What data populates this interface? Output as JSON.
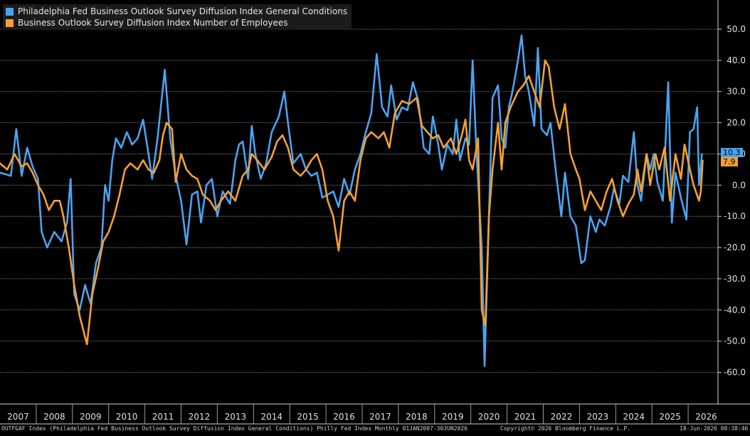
{
  "legend": {
    "items": [
      {
        "label": "Philadelphia Fed Business Outlook Survey Diffusion Index General Conditions",
        "color": "#4aa3f0"
      },
      {
        "label": "Business Outlook Survey Diffusion Index Number of Employees",
        "color": "#f5a030"
      }
    ]
  },
  "last_values": {
    "general": "10.3",
    "employees": "7.9"
  },
  "footer": {
    "left": "OUTFGAF Index (Philadelphia Fed Business Outlook Survey Diffusion Index General Conditions) Philly Fed Index Monthly 01JAN2007-30JUN2026",
    "center": "Copyright© 2026 Bloomberg Finance L.P.",
    "right": "18-Jun-2026 08:38:46"
  },
  "chart_data": {
    "type": "line",
    "x_tick_labels": [
      "2007",
      "2008",
      "2009",
      "2010",
      "2011",
      "2012",
      "2013",
      "2014",
      "2015",
      "2016",
      "2017",
      "2018",
      "2019",
      "2020",
      "2021",
      "2022",
      "2023",
      "2024",
      "2025",
      "2026"
    ],
    "y_tick_labels": [
      "50.0",
      "40.0",
      "30.0",
      "20.0",
      "10.0",
      "0.0",
      "-10.0",
      "-20.0",
      "-30.0",
      "-40.0",
      "-50.0",
      "-60.0"
    ],
    "ylim": [
      -65,
      55
    ],
    "y_ticks": [
      50,
      40,
      30,
      20,
      10,
      0,
      -10,
      -20,
      -30,
      -40,
      -50,
      -60
    ],
    "grid": true,
    "series": [
      {
        "name": "Philadelphia Fed Business Outlook Survey Diffusion Index General Conditions",
        "color": "#4aa3f0",
        "anchors": [
          [
            2007.0,
            4
          ],
          [
            2007.3,
            3
          ],
          [
            2007.45,
            18
          ],
          [
            2007.6,
            3
          ],
          [
            2007.75,
            12
          ],
          [
            2007.9,
            6
          ],
          [
            2008.05,
            2
          ],
          [
            2008.15,
            -15
          ],
          [
            2008.3,
            -20
          ],
          [
            2008.5,
            -15
          ],
          [
            2008.7,
            -18
          ],
          [
            2008.85,
            -12
          ],
          [
            2008.95,
            2
          ],
          [
            2009.05,
            -35
          ],
          [
            2009.2,
            -40
          ],
          [
            2009.35,
            -32
          ],
          [
            2009.5,
            -38
          ],
          [
            2009.65,
            -25
          ],
          [
            2009.8,
            -20
          ],
          [
            2009.9,
            0
          ],
          [
            2010.0,
            -5
          ],
          [
            2010.1,
            8
          ],
          [
            2010.2,
            15
          ],
          [
            2010.35,
            12
          ],
          [
            2010.5,
            17
          ],
          [
            2010.65,
            13
          ],
          [
            2010.8,
            15
          ],
          [
            2010.95,
            21
          ],
          [
            2011.1,
            10
          ],
          [
            2011.2,
            2
          ],
          [
            2011.35,
            15
          ],
          [
            2011.55,
            37
          ],
          [
            2011.7,
            15
          ],
          [
            2011.85,
            3
          ],
          [
            2012.0,
            -5
          ],
          [
            2012.15,
            -19
          ],
          [
            2012.3,
            -3
          ],
          [
            2012.45,
            -2
          ],
          [
            2012.55,
            -12
          ],
          [
            2012.7,
            0
          ],
          [
            2012.85,
            2
          ],
          [
            2013.0,
            -10
          ],
          [
            2013.15,
            -2
          ],
          [
            2013.35,
            -6
          ],
          [
            2013.5,
            8
          ],
          [
            2013.6,
            13
          ],
          [
            2013.7,
            14
          ],
          [
            2013.85,
            2
          ],
          [
            2013.95,
            19
          ],
          [
            2014.05,
            10
          ],
          [
            2014.2,
            2
          ],
          [
            2014.35,
            7
          ],
          [
            2014.5,
            17
          ],
          [
            2014.7,
            22
          ],
          [
            2014.85,
            30
          ],
          [
            2014.95,
            20
          ],
          [
            2015.1,
            7
          ],
          [
            2015.3,
            10
          ],
          [
            2015.45,
            5
          ],
          [
            2015.6,
            3
          ],
          [
            2015.75,
            4
          ],
          [
            2015.9,
            -4
          ],
          [
            2016.05,
            -3
          ],
          [
            2016.2,
            -2
          ],
          [
            2016.35,
            -7
          ],
          [
            2016.5,
            2
          ],
          [
            2016.65,
            -3
          ],
          [
            2016.8,
            5
          ],
          [
            2016.95,
            10
          ],
          [
            2017.1,
            17
          ],
          [
            2017.25,
            23
          ],
          [
            2017.4,
            42
          ],
          [
            2017.55,
            25
          ],
          [
            2017.7,
            22
          ],
          [
            2017.8,
            32
          ],
          [
            2017.95,
            21
          ],
          [
            2018.1,
            25
          ],
          [
            2018.25,
            24
          ],
          [
            2018.4,
            33
          ],
          [
            2018.55,
            27
          ],
          [
            2018.7,
            12
          ],
          [
            2018.85,
            10
          ],
          [
            2018.95,
            22
          ],
          [
            2019.1,
            13
          ],
          [
            2019.2,
            5
          ],
          [
            2019.35,
            13
          ],
          [
            2019.5,
            10
          ],
          [
            2019.6,
            21
          ],
          [
            2019.7,
            8
          ],
          [
            2019.85,
            15
          ],
          [
            2019.95,
            13
          ],
          [
            2020.05,
            40
          ],
          [
            2020.15,
            12
          ],
          [
            2020.3,
            -20
          ],
          [
            2020.38,
            -58
          ],
          [
            2020.5,
            -10
          ],
          [
            2020.6,
            28
          ],
          [
            2020.75,
            32
          ],
          [
            2020.85,
            15
          ],
          [
            2020.95,
            12
          ],
          [
            2021.05,
            25
          ],
          [
            2021.15,
            30
          ],
          [
            2021.3,
            40
          ],
          [
            2021.4,
            48
          ],
          [
            2021.5,
            35
          ],
          [
            2021.6,
            30
          ],
          [
            2021.75,
            19
          ],
          [
            2021.85,
            44
          ],
          [
            2021.95,
            18
          ],
          [
            2022.1,
            16
          ],
          [
            2022.2,
            20
          ],
          [
            2022.35,
            4
          ],
          [
            2022.5,
            -10
          ],
          [
            2022.6,
            4
          ],
          [
            2022.75,
            -10
          ],
          [
            2022.9,
            -13
          ],
          [
            2023.05,
            -25
          ],
          [
            2023.15,
            -24
          ],
          [
            2023.3,
            -10
          ],
          [
            2023.45,
            -15
          ],
          [
            2023.55,
            -11
          ],
          [
            2023.7,
            -13
          ],
          [
            2023.85,
            -7
          ],
          [
            2023.95,
            -1
          ],
          [
            2024.1,
            -6
          ],
          [
            2024.2,
            3
          ],
          [
            2024.35,
            1
          ],
          [
            2024.5,
            17
          ],
          [
            2024.6,
            0
          ],
          [
            2024.7,
            -5
          ],
          [
            2024.85,
            10
          ],
          [
            2024.95,
            5
          ],
          [
            2025.05,
            10
          ],
          [
            2025.15,
            1
          ],
          [
            2025.3,
            -5
          ],
          [
            2025.45,
            33
          ],
          [
            2025.55,
            -12
          ],
          [
            2025.65,
            4
          ],
          [
            2025.8,
            -4
          ],
          [
            2025.95,
            -11
          ],
          [
            2026.05,
            17
          ],
          [
            2026.15,
            18
          ],
          [
            2026.25,
            25
          ],
          [
            2026.3,
            0
          ],
          [
            2026.38,
            10
          ]
        ]
      },
      {
        "name": "Business Outlook Survey Diffusion Index Number of Employees",
        "color": "#f5a030",
        "anchors": [
          [
            2007.0,
            7
          ],
          [
            2007.2,
            5
          ],
          [
            2007.4,
            10
          ],
          [
            2007.6,
            6
          ],
          [
            2007.75,
            7
          ],
          [
            2007.9,
            4
          ],
          [
            2008.05,
            0
          ],
          [
            2008.2,
            -3
          ],
          [
            2008.35,
            -8
          ],
          [
            2008.5,
            -5
          ],
          [
            2008.65,
            -5
          ],
          [
            2008.75,
            -10
          ],
          [
            2008.9,
            -20
          ],
          [
            2009.05,
            -32
          ],
          [
            2009.2,
            -42
          ],
          [
            2009.4,
            -51
          ],
          [
            2009.55,
            -35
          ],
          [
            2009.7,
            -27
          ],
          [
            2009.85,
            -18
          ],
          [
            2010.0,
            -15
          ],
          [
            2010.15,
            -10
          ],
          [
            2010.3,
            -3
          ],
          [
            2010.45,
            5
          ],
          [
            2010.6,
            7
          ],
          [
            2010.8,
            5
          ],
          [
            2010.95,
            8
          ],
          [
            2011.1,
            5
          ],
          [
            2011.25,
            4
          ],
          [
            2011.4,
            8
          ],
          [
            2011.5,
            16
          ],
          [
            2011.6,
            20
          ],
          [
            2011.75,
            18
          ],
          [
            2011.85,
            1
          ],
          [
            2012.0,
            10
          ],
          [
            2012.15,
            5
          ],
          [
            2012.3,
            3
          ],
          [
            2012.45,
            2
          ],
          [
            2012.6,
            -3
          ],
          [
            2012.8,
            -5
          ],
          [
            2012.95,
            -8
          ],
          [
            2013.1,
            -5
          ],
          [
            2013.3,
            -2
          ],
          [
            2013.5,
            -5
          ],
          [
            2013.7,
            3
          ],
          [
            2013.85,
            5
          ],
          [
            2013.95,
            10
          ],
          [
            2014.1,
            8
          ],
          [
            2014.3,
            5
          ],
          [
            2014.5,
            9
          ],
          [
            2014.65,
            14
          ],
          [
            2014.8,
            16
          ],
          [
            2014.95,
            12
          ],
          [
            2015.1,
            5
          ],
          [
            2015.3,
            3
          ],
          [
            2015.45,
            5
          ],
          [
            2015.6,
            8
          ],
          [
            2015.75,
            10
          ],
          [
            2015.9,
            5
          ],
          [
            2016.05,
            -5
          ],
          [
            2016.2,
            -10
          ],
          [
            2016.35,
            -21
          ],
          [
            2016.5,
            -5
          ],
          [
            2016.65,
            -2
          ],
          [
            2016.8,
            -5
          ],
          [
            2016.95,
            8
          ],
          [
            2017.1,
            15
          ],
          [
            2017.25,
            17
          ],
          [
            2017.45,
            15
          ],
          [
            2017.6,
            17
          ],
          [
            2017.75,
            12
          ],
          [
            2017.9,
            23
          ],
          [
            2018.1,
            27
          ],
          [
            2018.3,
            26
          ],
          [
            2018.5,
            28
          ],
          [
            2018.65,
            19
          ],
          [
            2018.8,
            17
          ],
          [
            2018.95,
            15
          ],
          [
            2019.1,
            16
          ],
          [
            2019.25,
            12
          ],
          [
            2019.45,
            15
          ],
          [
            2019.6,
            10
          ],
          [
            2019.75,
            16
          ],
          [
            2019.85,
            21
          ],
          [
            2019.95,
            8
          ],
          [
            2020.05,
            5
          ],
          [
            2020.2,
            15
          ],
          [
            2020.3,
            -40
          ],
          [
            2020.4,
            -45
          ],
          [
            2020.5,
            -10
          ],
          [
            2020.6,
            5
          ],
          [
            2020.75,
            20
          ],
          [
            2020.85,
            5
          ],
          [
            2020.95,
            20
          ],
          [
            2021.1,
            25
          ],
          [
            2021.3,
            30
          ],
          [
            2021.45,
            32
          ],
          [
            2021.6,
            35
          ],
          [
            2021.75,
            30
          ],
          [
            2021.9,
            25
          ],
          [
            2022.05,
            40
          ],
          [
            2022.15,
            38
          ],
          [
            2022.3,
            25
          ],
          [
            2022.45,
            18
          ],
          [
            2022.6,
            26
          ],
          [
            2022.75,
            10
          ],
          [
            2022.9,
            5
          ],
          [
            2023.0,
            2
          ],
          [
            2023.15,
            -8
          ],
          [
            2023.3,
            -2
          ],
          [
            2023.45,
            -5
          ],
          [
            2023.6,
            -8
          ],
          [
            2023.75,
            -2
          ],
          [
            2023.9,
            2
          ],
          [
            2024.05,
            -5
          ],
          [
            2024.2,
            -10
          ],
          [
            2024.35,
            -6
          ],
          [
            2024.5,
            -3
          ],
          [
            2024.6,
            5
          ],
          [
            2024.7,
            -2
          ],
          [
            2024.85,
            10
          ],
          [
            2024.95,
            0
          ],
          [
            2025.1,
            10
          ],
          [
            2025.2,
            5
          ],
          [
            2025.35,
            12
          ],
          [
            2025.5,
            -5
          ],
          [
            2025.65,
            10
          ],
          [
            2025.8,
            2
          ],
          [
            2025.9,
            13
          ],
          [
            2026.05,
            5
          ],
          [
            2026.15,
            0
          ],
          [
            2026.3,
            -5
          ],
          [
            2026.35,
            -2
          ],
          [
            2026.4,
            7.9
          ]
        ]
      }
    ]
  }
}
